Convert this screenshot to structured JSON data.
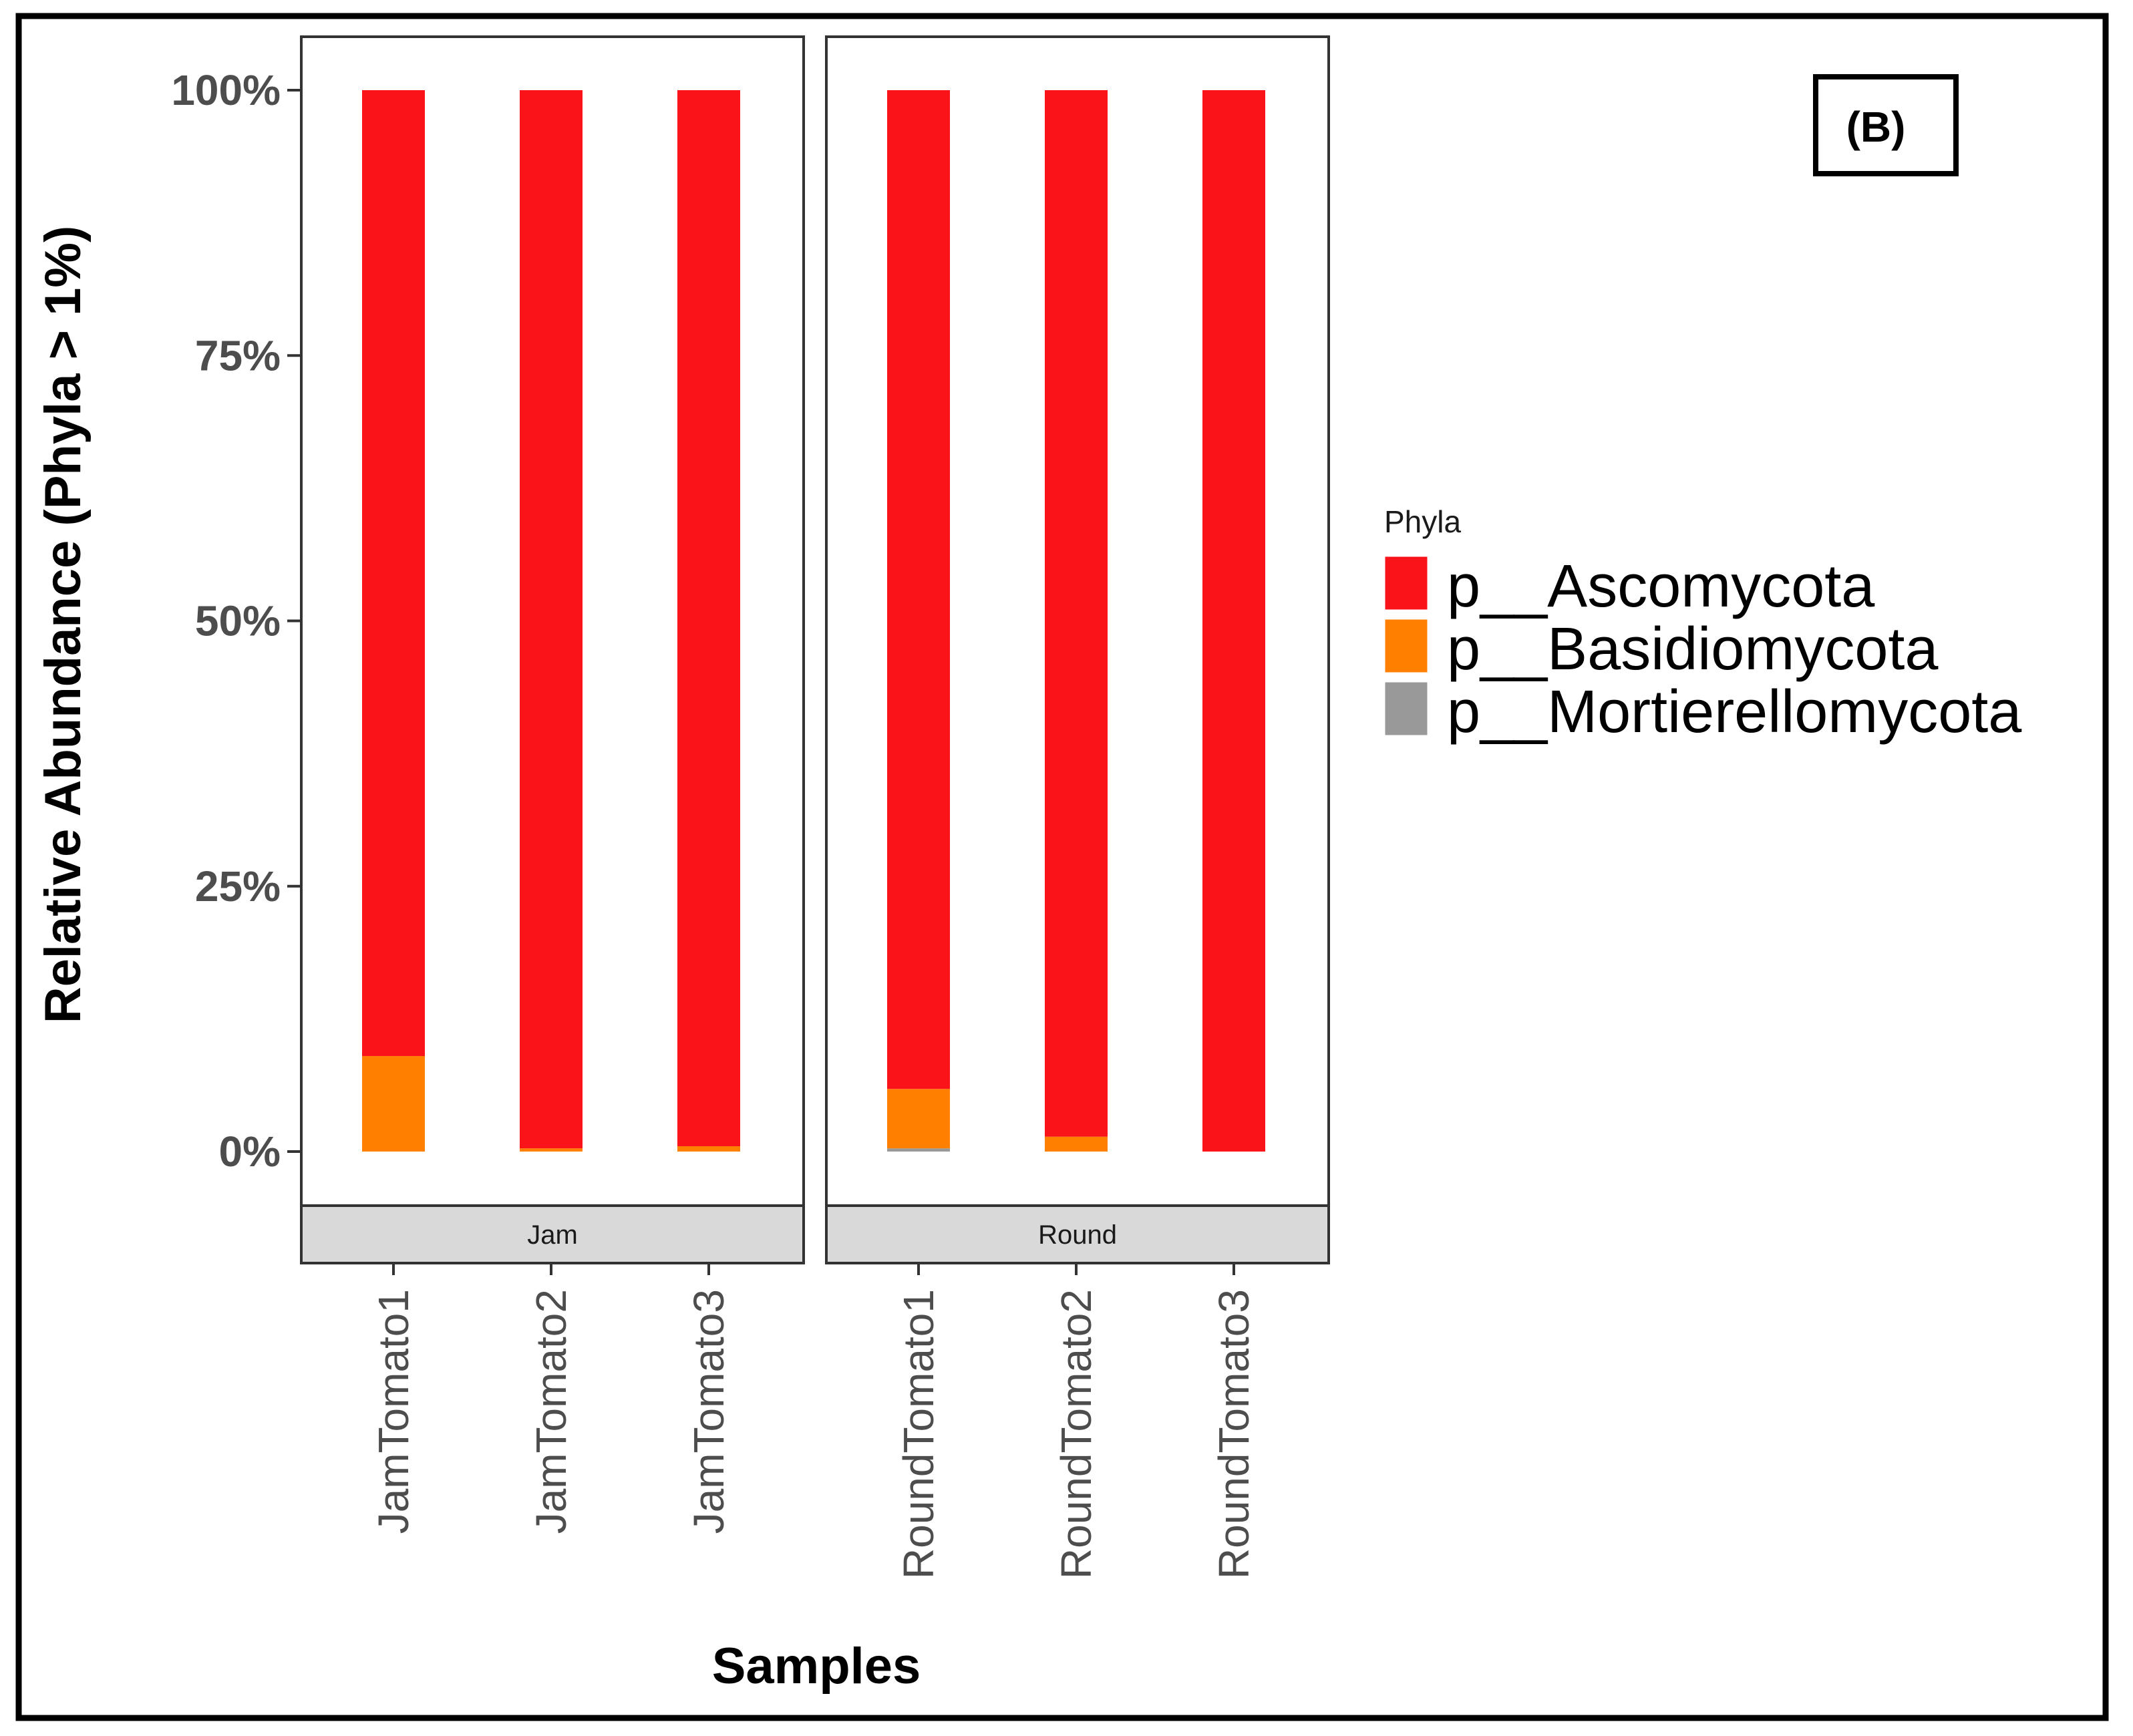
{
  "chart_data": {
    "type": "bar",
    "stacked": true,
    "panel_label": "(B)",
    "ylabel": "Relative Abundance (Phyla > 1%)",
    "xlabel": "Samples",
    "ylim": [
      0,
      100
    ],
    "yticks": [
      "0%",
      "25%",
      "50%",
      "75%",
      "100%"
    ],
    "legend_title": "Phyla",
    "legend_position": "right",
    "facets": [
      {
        "label": "Jam",
        "categories": [
          "JamTomato1",
          "JamTomato2",
          "JamTomato3"
        ],
        "series": [
          {
            "name": "p__Mortierellomycota",
            "values": [
              0,
              0,
              0
            ]
          },
          {
            "name": "p__Basidiomycota",
            "values": [
              9,
              0.3,
              0.5
            ]
          },
          {
            "name": "p__Ascomycota",
            "values": [
              91,
              99.7,
              99.5
            ]
          }
        ]
      },
      {
        "label": "Round",
        "categories": [
          "RoundTomato1",
          "RoundTomato2",
          "RoundTomato3"
        ],
        "series": [
          {
            "name": "p__Mortierellomycota",
            "values": [
              0.3,
              0,
              0
            ]
          },
          {
            "name": "p__Basidiomycota",
            "values": [
              5.6,
              1.4,
              0
            ]
          },
          {
            "name": "p__Ascomycota",
            "values": [
              94.1,
              98.6,
              100
            ]
          }
        ]
      }
    ],
    "legend": [
      {
        "name": "p__Ascomycota",
        "color": "#fa1419"
      },
      {
        "name": "p__Basidiomycota",
        "color": "#ff8000"
      },
      {
        "name": "p__Mortierellomycota",
        "color": "#999999"
      }
    ]
  }
}
